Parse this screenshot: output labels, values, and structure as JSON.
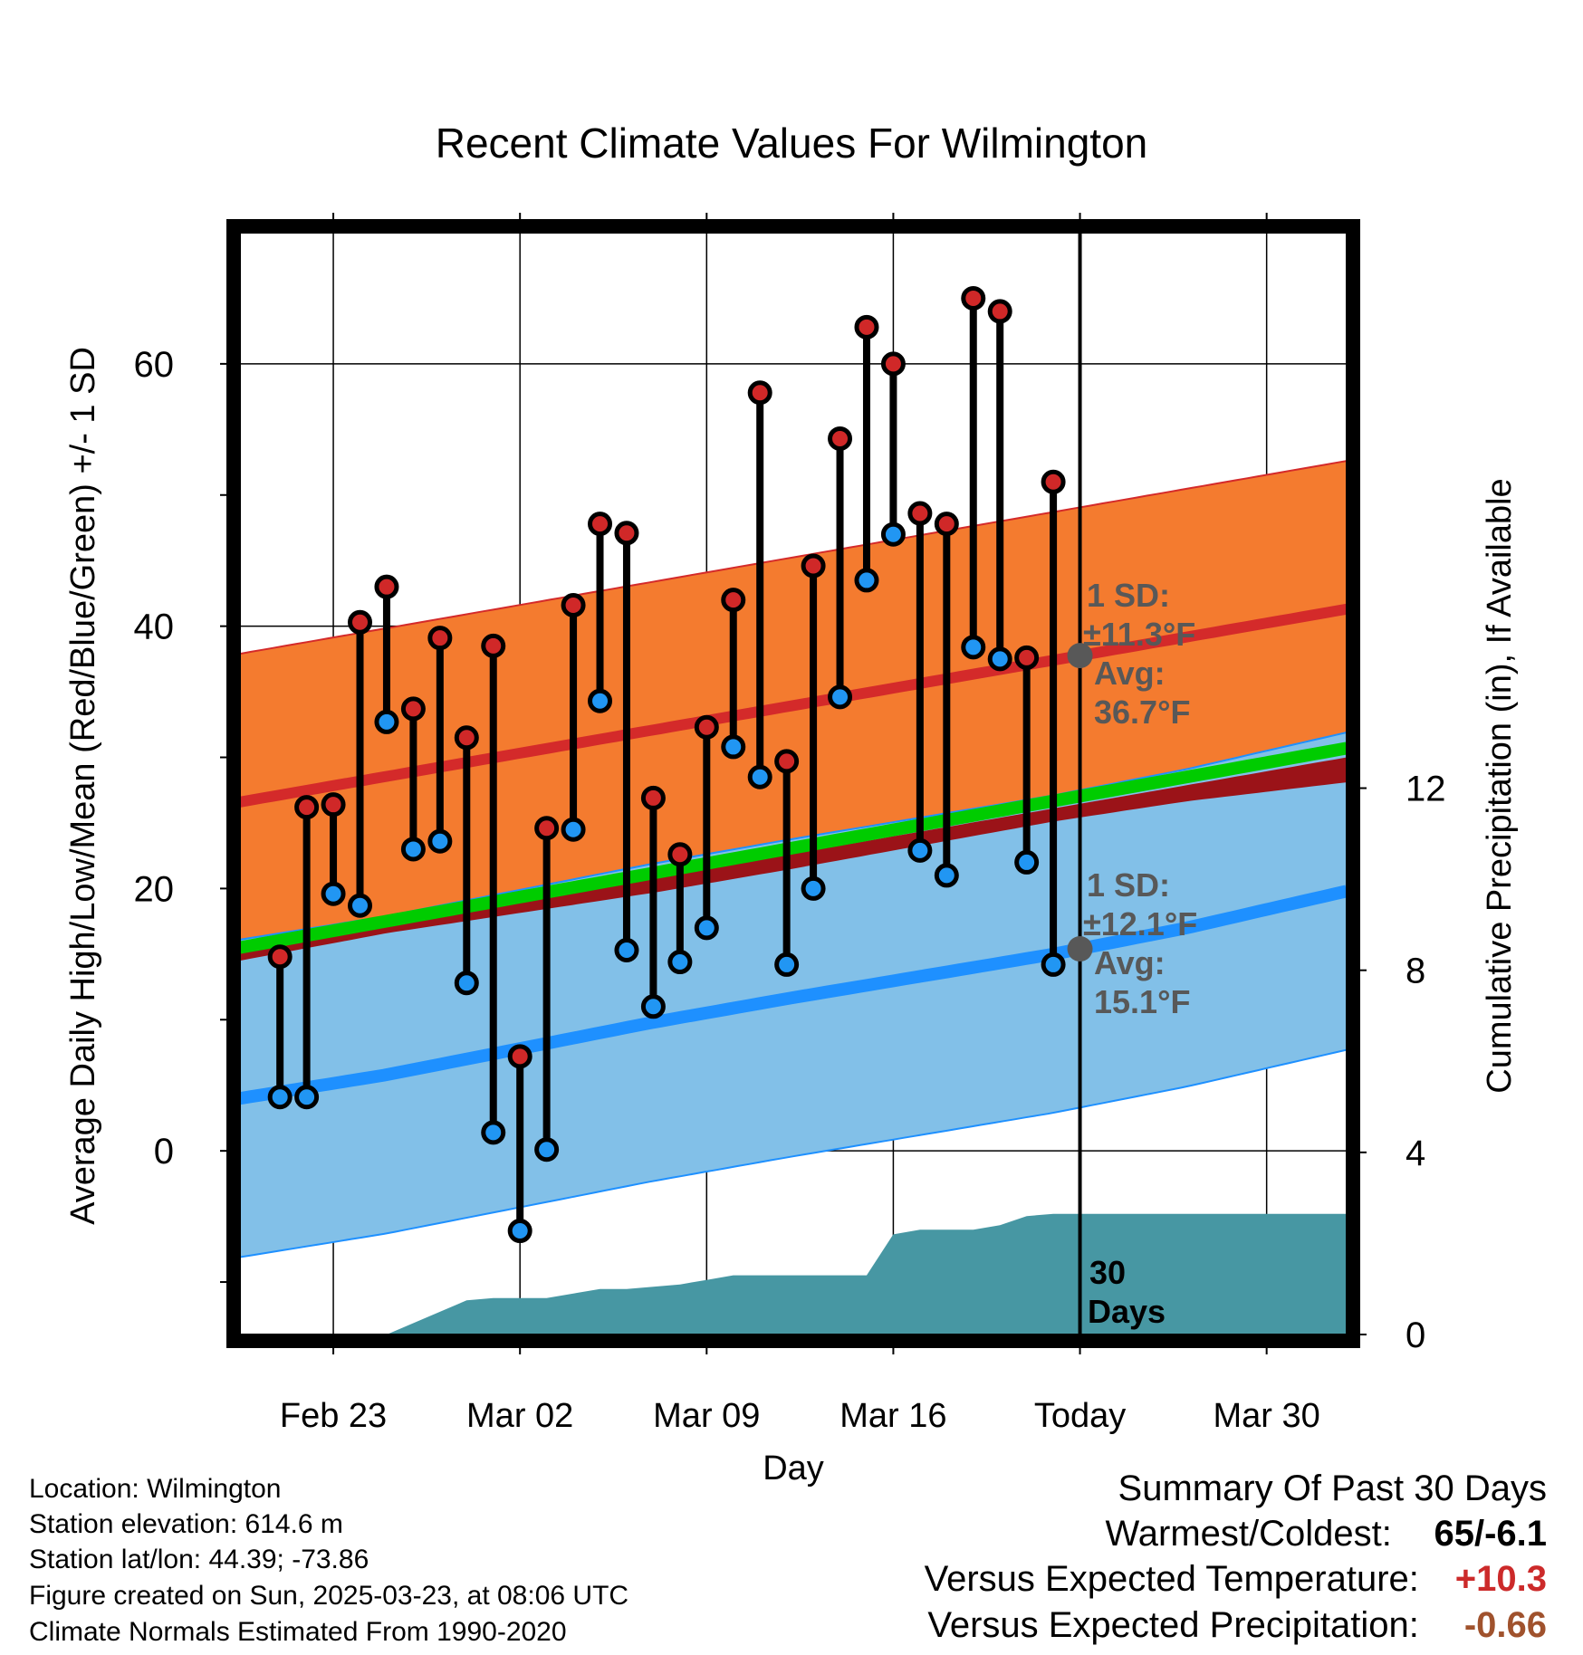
{
  "chart_data": {
    "type": "line",
    "title": "Recent Climate Values For Wilmington",
    "xlabel": "Day",
    "ylabel": "Average Daily High/Low/Mean (Red/Blue/Green) +/- 1 SD",
    "ylabel2": "Cumulative Precipitation (in), If Available",
    "xlim": [
      -0.5,
      41
    ],
    "ylim": [
      -14,
      70
    ],
    "ylim2": [
      0,
      24.2
    ],
    "x_ticks": [
      {
        "x": 3,
        "label": "Feb 23"
      },
      {
        "x": 10,
        "label": "Mar 02"
      },
      {
        "x": 17,
        "label": "Mar 09"
      },
      {
        "x": 24,
        "label": "Mar 16"
      },
      {
        "x": 31,
        "label": "Today"
      },
      {
        "x": 38,
        "label": "Mar 30"
      }
    ],
    "y_ticks": [
      0,
      20,
      40,
      60
    ],
    "y_minor_ticks": [
      -10,
      10,
      30,
      50
    ],
    "y2_ticks": [
      0,
      4,
      8,
      12
    ],
    "grid": true,
    "today_x": 31,
    "normal_x": [
      -0.5,
      41
    ],
    "normal_high": [
      26.6,
      41.3
    ],
    "normal_high_sd": 11.3,
    "normal_low_x": [
      -0.5,
      5,
      10,
      15,
      20,
      25,
      30,
      35,
      41
    ],
    "normal_low": [
      4.0,
      5.8,
      7.8,
      9.8,
      11.6,
      13.3,
      15.0,
      17.0,
      19.8
    ],
    "normal_low_sd": 12.1,
    "normal_mean": [
      15.5,
      30.7
    ],
    "days": [
      1,
      2,
      3,
      4,
      5,
      6,
      7,
      8,
      9,
      10,
      11,
      12,
      13,
      14,
      15,
      16,
      17,
      18,
      19,
      20,
      21,
      22,
      23,
      24,
      25,
      26,
      27,
      28,
      29,
      30
    ],
    "high": [
      14.8,
      26.2,
      26.4,
      40.3,
      43.0,
      33.7,
      39.1,
      31.5,
      38.5,
      7.2,
      24.6,
      41.6,
      47.8,
      47.1,
      26.9,
      22.6,
      32.3,
      42.0,
      57.8,
      29.7,
      44.6,
      54.3,
      62.8,
      60.0,
      48.6,
      47.8,
      65.0,
      64.0,
      37.6,
      51.0
    ],
    "low": [
      4.1,
      4.1,
      19.6,
      18.7,
      32.7,
      23.0,
      23.6,
      12.8,
      1.4,
      -6.1,
      0.1,
      24.5,
      34.3,
      15.3,
      11.0,
      14.4,
      17.0,
      30.8,
      28.5,
      14.2,
      20.0,
      34.6,
      43.5,
      47.0,
      22.9,
      21.0,
      38.4,
      37.5,
      22.0,
      14.2
    ],
    "precip_x": [
      5,
      7,
      8,
      9,
      10,
      11,
      12,
      13,
      14,
      15,
      16,
      17,
      18,
      19,
      20,
      21,
      22,
      23,
      24,
      25,
      26,
      27,
      28,
      29,
      30,
      31,
      41
    ],
    "precip": [
      0,
      0.5,
      0.75,
      0.8,
      0.8,
      0.8,
      0.9,
      1.0,
      1.0,
      1.05,
      1.1,
      1.2,
      1.3,
      1.3,
      1.3,
      1.3,
      1.3,
      1.3,
      2.2,
      2.3,
      2.3,
      2.3,
      2.4,
      2.6,
      2.65,
      2.65,
      2.65
    ],
    "annotations": {
      "high_sd_line1": "1 SD:",
      "high_sd_line2": "±11.3°F",
      "high_avg_line1": "Avg:",
      "high_avg_line2": "36.7°F",
      "low_sd_line1": "1 SD:",
      "low_sd_line2": "±12.1°F",
      "low_avg_line1": "Avg:",
      "low_avg_line2": "15.1°F",
      "window_line1": "30",
      "window_line2": "Days"
    },
    "colors": {
      "high_band": "#f47b2f",
      "high_line": "#d42a2a",
      "overlap": "#9b1318",
      "low_band": "#82c0e8",
      "low_line": "#1e90ff",
      "mean_line": "#00cc00",
      "precip": "#4797a3",
      "high_dot": "#d02828",
      "low_dot": "#2196f3",
      "marker": "#585858"
    }
  },
  "info": {
    "location": "Location: Wilmington",
    "elevation": "Station elevation: 614.6 m",
    "latlon": "Station lat/lon: 44.39; -73.86",
    "created": "Figure created on Sun, 2025-03-23, at 08:06 UTC",
    "normals": "Climate Normals Estimated From 1990-2020"
  },
  "summary": {
    "title": "Summary Of Past 30 Days",
    "warmest_label": "Warmest/Coldest:",
    "warmest_value": "65/-6.1",
    "temp_label": "Versus Expected Temperature:",
    "temp_value": "+10.3",
    "temp_color": "#cc2a2a",
    "precip_label": "Versus Expected Precipitation:",
    "precip_value": "-0.66",
    "precip_color": "#a0522d"
  }
}
